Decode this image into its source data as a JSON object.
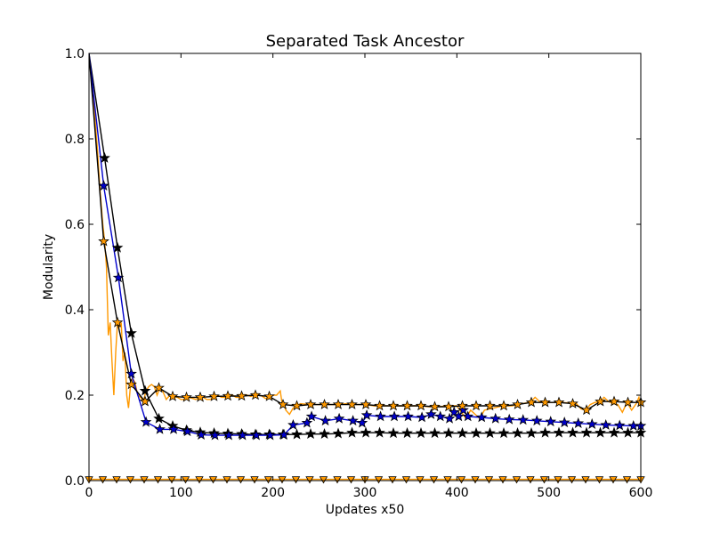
{
  "chart_data": {
    "type": "line",
    "title": "Separated Task Ancestor",
    "xlabel": "Updates x50",
    "ylabel": "Modularity",
    "xlim": [
      0,
      600
    ],
    "ylim": [
      0.0,
      1.0
    ],
    "xticks": [
      "0",
      "100",
      "200",
      "300",
      "400",
      "500",
      "600"
    ],
    "yticks": [
      "0.0",
      "0.2",
      "0.4",
      "0.6",
      "0.8",
      "1.0"
    ],
    "grid": false,
    "legend": "none",
    "series": [
      {
        "color": "#ff9900",
        "line_color": "#ff9900",
        "marker": "triangle-down",
        "marker_color": "#ff9900",
        "marker_edge": "#000000",
        "x": [
          0,
          15,
          30,
          45,
          60,
          75,
          90,
          105,
          120,
          135,
          150,
          165,
          180,
          195,
          210,
          225,
          240,
          255,
          270,
          285,
          300,
          315,
          330,
          345,
          360,
          375,
          390,
          405,
          420,
          435,
          450,
          465,
          480,
          495,
          510,
          525,
          540,
          555,
          570,
          585,
          600
        ],
        "values": [
          0.003,
          0.003,
          0.003,
          0.003,
          0.003,
          0.003,
          0.003,
          0.003,
          0.003,
          0.003,
          0.003,
          0.003,
          0.003,
          0.003,
          0.003,
          0.003,
          0.003,
          0.003,
          0.003,
          0.003,
          0.003,
          0.003,
          0.003,
          0.003,
          0.003,
          0.003,
          0.003,
          0.003,
          0.003,
          0.003,
          0.003,
          0.003,
          0.003,
          0.003,
          0.003,
          0.003,
          0.003,
          0.003,
          0.003,
          0.003,
          0.003
        ]
      },
      {
        "color": "#000000",
        "line_color": "#000000",
        "marker": "star",
        "marker_color": "#000000",
        "marker_edge": "#000000",
        "x": [
          0,
          17,
          31,
          46,
          61,
          76,
          91,
          106,
          121,
          136,
          151,
          166,
          181,
          196,
          211,
          226,
          241,
          256,
          271,
          286,
          301,
          316,
          331,
          346,
          361,
          376,
          391,
          406,
          421,
          436,
          451,
          466,
          481,
          496,
          511,
          526,
          541,
          556,
          571,
          586,
          600
        ],
        "values": [
          1.0,
          0.755,
          0.545,
          0.345,
          0.21,
          0.145,
          0.128,
          0.118,
          0.113,
          0.111,
          0.11,
          0.109,
          0.108,
          0.108,
          0.108,
          0.108,
          0.109,
          0.109,
          0.11,
          0.112,
          0.112,
          0.112,
          0.111,
          0.111,
          0.111,
          0.111,
          0.111,
          0.111,
          0.111,
          0.111,
          0.111,
          0.111,
          0.111,
          0.112,
          0.112,
          0.112,
          0.112,
          0.112,
          0.112,
          0.112,
          0.112
        ]
      },
      {
        "color": "#0000cc",
        "line_color": "#0000cc",
        "marker": "star",
        "marker_color": "#0000cc",
        "marker_edge": "#000000",
        "x": [
          0,
          16,
          32,
          46,
          62,
          77,
          92,
          107,
          122,
          137,
          152,
          167,
          182,
          197,
          212,
          222,
          237,
          242,
          257,
          272,
          287,
          297,
          302,
          317,
          332,
          347,
          362,
          372,
          382,
          392,
          397,
          402,
          407,
          412,
          427,
          442,
          457,
          472,
          487,
          502,
          517,
          532,
          547,
          562,
          577,
          592,
          600
        ],
        "values": [
          1.0,
          0.69,
          0.475,
          0.25,
          0.137,
          0.12,
          0.12,
          0.115,
          0.107,
          0.106,
          0.106,
          0.106,
          0.106,
          0.106,
          0.107,
          0.13,
          0.135,
          0.15,
          0.14,
          0.145,
          0.14,
          0.135,
          0.153,
          0.15,
          0.15,
          0.15,
          0.148,
          0.155,
          0.15,
          0.145,
          0.16,
          0.15,
          0.165,
          0.15,
          0.148,
          0.145,
          0.143,
          0.142,
          0.14,
          0.138,
          0.136,
          0.134,
          0.132,
          0.13,
          0.129,
          0.128,
          0.128
        ]
      },
      {
        "color": "#ff9900",
        "line_color": "#000000",
        "marker": "star",
        "marker_color": "#ff9900",
        "marker_edge": "#000000",
        "x": [
          0,
          16,
          31,
          46,
          61,
          76,
          91,
          106,
          121,
          136,
          151,
          166,
          181,
          196,
          211,
          226,
          241,
          256,
          271,
          286,
          301,
          316,
          331,
          346,
          361,
          376,
          391,
          406,
          421,
          436,
          451,
          466,
          481,
          496,
          511,
          526,
          541,
          556,
          571,
          586,
          600
        ],
        "values": [
          1.0,
          0.56,
          0.37,
          0.225,
          0.185,
          0.217,
          0.197,
          0.195,
          0.195,
          0.197,
          0.198,
          0.198,
          0.2,
          0.197,
          0.178,
          0.175,
          0.178,
          0.178,
          0.178,
          0.178,
          0.178,
          0.175,
          0.175,
          0.175,
          0.175,
          0.173,
          0.173,
          0.175,
          0.175,
          0.175,
          0.175,
          0.178,
          0.183,
          0.183,
          0.183,
          0.18,
          0.165,
          0.185,
          0.185,
          0.183,
          0.183
        ]
      }
    ],
    "noisy_overlays": [
      {
        "color": "#ff9900",
        "x": [
          0,
          3,
          6,
          9,
          12,
          15,
          17,
          19,
          21,
          23,
          25,
          27,
          29,
          31,
          33,
          35,
          37,
          39,
          41,
          43,
          45,
          47,
          50,
          53,
          56,
          59,
          62,
          65,
          68,
          71,
          74,
          77,
          80,
          84,
          88,
          92,
          96,
          100,
          104,
          108,
          112,
          116,
          120,
          124,
          128,
          132,
          136,
          140,
          144,
          148,
          152,
          156,
          160,
          164,
          168,
          172,
          176,
          180,
          184,
          188,
          192,
          196,
          200,
          204,
          208,
          210,
          212,
          214,
          218,
          222,
          226,
          230,
          240,
          250,
          260,
          270,
          280,
          290,
          300,
          310,
          320,
          330,
          340,
          350,
          360,
          370,
          380,
          390,
          400,
          405,
          410,
          415,
          420,
          425,
          430,
          440,
          450,
          460,
          470,
          480,
          485,
          490,
          500,
          510,
          520,
          530,
          535,
          540,
          545,
          550,
          556,
          560,
          565,
          570,
          575,
          580,
          585,
          590,
          595,
          598,
          600
        ],
        "values": [
          1.0,
          0.93,
          0.86,
          0.78,
          0.68,
          0.6,
          0.56,
          0.5,
          0.34,
          0.37,
          0.28,
          0.2,
          0.3,
          0.37,
          0.36,
          0.37,
          0.28,
          0.3,
          0.2,
          0.17,
          0.22,
          0.24,
          0.23,
          0.2,
          0.195,
          0.185,
          0.21,
          0.22,
          0.225,
          0.22,
          0.2,
          0.217,
          0.21,
          0.19,
          0.2,
          0.197,
          0.195,
          0.19,
          0.19,
          0.195,
          0.193,
          0.19,
          0.195,
          0.195,
          0.19,
          0.19,
          0.197,
          0.2,
          0.195,
          0.195,
          0.198,
          0.2,
          0.195,
          0.195,
          0.198,
          0.2,
          0.197,
          0.2,
          0.2,
          0.198,
          0.192,
          0.197,
          0.2,
          0.2,
          0.21,
          0.18,
          0.178,
          0.165,
          0.155,
          0.17,
          0.175,
          0.18,
          0.178,
          0.178,
          0.178,
          0.178,
          0.18,
          0.178,
          0.178,
          0.175,
          0.175,
          0.175,
          0.175,
          0.175,
          0.175,
          0.173,
          0.173,
          0.175,
          0.175,
          0.16,
          0.145,
          0.165,
          0.155,
          0.145,
          0.165,
          0.17,
          0.175,
          0.175,
          0.18,
          0.183,
          0.195,
          0.185,
          0.183,
          0.183,
          0.182,
          0.18,
          0.168,
          0.165,
          0.178,
          0.183,
          0.185,
          0.195,
          0.185,
          0.18,
          0.178,
          0.16,
          0.183,
          0.165,
          0.18,
          0.195,
          0.17
        ]
      }
    ]
  }
}
